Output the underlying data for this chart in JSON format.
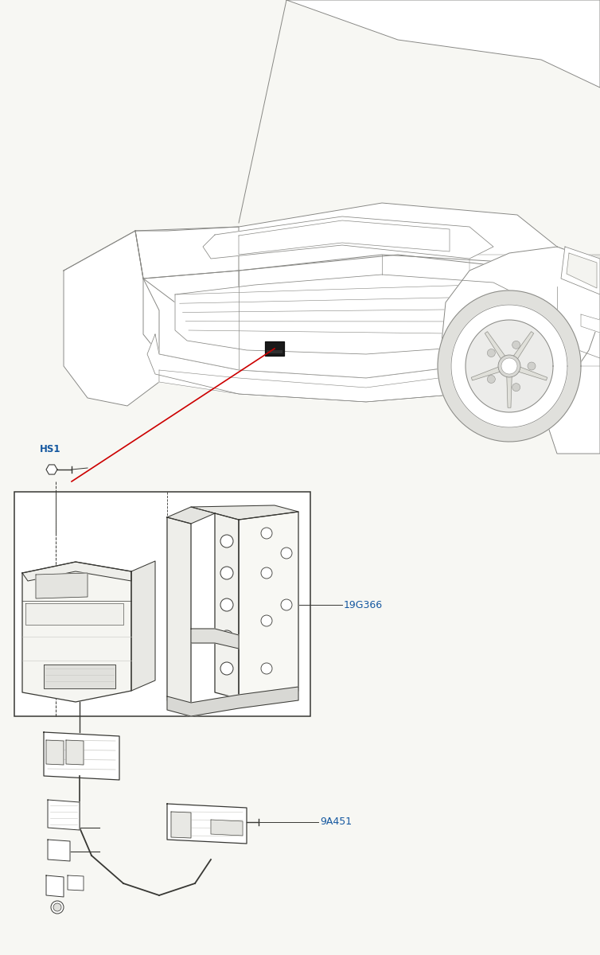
{
  "bg_color": "#f7f7f3",
  "line_color": "#c8c8c4",
  "car_line": "#888884",
  "dark_line": "#383834",
  "red_line": "#cc0000",
  "blue_label": "#1558a0",
  "watermark_pink": "#e8b8b8",
  "watermark_gray": "#b8b8b4",
  "label_HS1": "HS1",
  "label_19G366": "19G366",
  "label_9A451": "9A451",
  "fig_width": 7.54,
  "fig_height": 12.0,
  "car_lw": 0.7,
  "detail_lw": 0.9
}
